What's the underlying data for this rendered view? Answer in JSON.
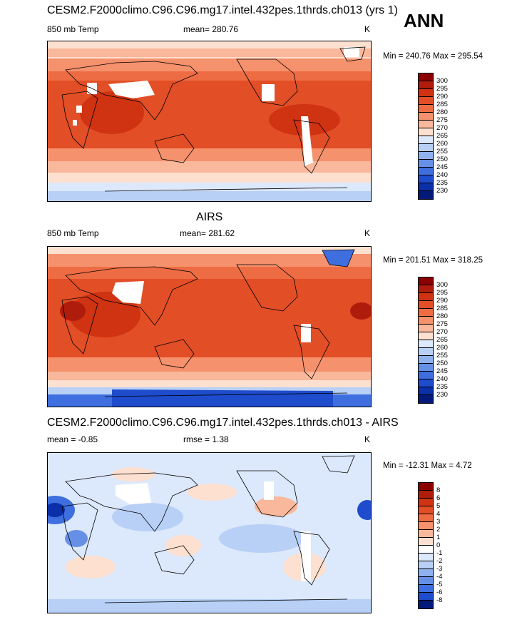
{
  "header": {
    "season": "ANN"
  },
  "panels": [
    {
      "title": "CESM2.F2000climo.C96.C96.mg17.intel.432pes.1thrds.ch013 (yrs 1)",
      "field": "850 mb Temp",
      "mean_text": "mean= 280.76",
      "units": "K",
      "minmax": "Min = 240.76 Max = 295.54",
      "colorbar_labels": [
        "300",
        "295",
        "290",
        "285",
        "280",
        "275",
        "270",
        "265",
        "260",
        "255",
        "250",
        "245",
        "240",
        "235",
        "230"
      ]
    },
    {
      "title": "AIRS",
      "field": "850 mb Temp",
      "mean_text": "mean= 281.62",
      "units": "K",
      "minmax": "Min = 201.51 Max = 318.25",
      "colorbar_labels": [
        "300",
        "295",
        "290",
        "285",
        "280",
        "275",
        "270",
        "265",
        "260",
        "255",
        "250",
        "245",
        "240",
        "235",
        "230"
      ]
    },
    {
      "title": "CESM2.F2000climo.C96.C96.mg17.intel.432pes.1thrds.ch013 - AIRS",
      "field": "mean =  -0.85",
      "mean_text": "rmse =   1.38",
      "units": "K",
      "minmax": "Min = -12.31 Max =   4.72",
      "colorbar_labels": [
        "8",
        "6",
        "5",
        "4",
        "3",
        "2",
        "1",
        "0",
        "-1",
        "-2",
        "-3",
        "-4",
        "-5",
        "-6",
        "-8"
      ]
    }
  ],
  "colors": {
    "abs_scale": [
      "#8b0000",
      "#b01c0c",
      "#cf3312",
      "#e24e26",
      "#ee6c44",
      "#f5916c",
      "#f9b79b",
      "#fde0d0",
      "#dce8fb",
      "#b8d0f6",
      "#8fb2ef",
      "#6690e6",
      "#3f6ede",
      "#1f4ccd",
      "#0a2fa8",
      "#041a7a"
    ],
    "diff_scale": [
      "#8b0000",
      "#b01c0c",
      "#cf3312",
      "#e24e26",
      "#ee6c44",
      "#f5916c",
      "#f9b79b",
      "#fde0d0",
      "#ffffff",
      "#dce8fb",
      "#b8d0f6",
      "#8fb2ef",
      "#6690e6",
      "#3f6ede",
      "#1f4ccd",
      "#041a7a"
    ]
  }
}
